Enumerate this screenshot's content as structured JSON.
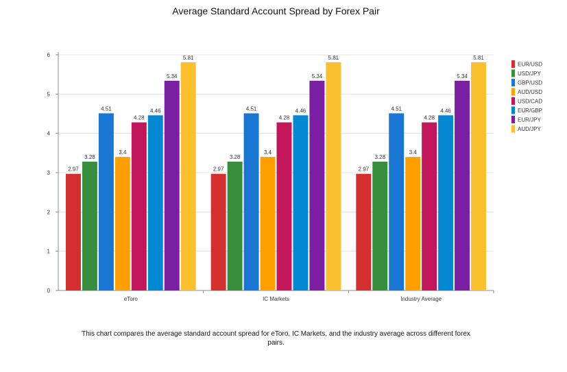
{
  "chart_data": {
    "type": "bar",
    "title": "Average Standard Account Spread by Forex Pair",
    "xlabel": "",
    "ylabel": "",
    "ylim": [
      0,
      6
    ],
    "yticks": [
      0,
      1,
      2,
      3,
      4,
      5,
      6
    ],
    "grid": true,
    "legend_position": "right",
    "categories": [
      "eToro",
      "IC Markets",
      "Industry Average"
    ],
    "series": [
      {
        "name": "EUR/USD",
        "color": "#d32f2f",
        "values": [
          2.97,
          2.97,
          2.97
        ]
      },
      {
        "name": "USD/JPY",
        "color": "#388e3c",
        "values": [
          3.28,
          3.28,
          3.28
        ]
      },
      {
        "name": "GBP/USD",
        "color": "#1976d2",
        "values": [
          4.51,
          4.51,
          4.51
        ]
      },
      {
        "name": "AUD/USD",
        "color": "#ffa000",
        "values": [
          3.4,
          3.4,
          3.4
        ]
      },
      {
        "name": "USD/CAD",
        "color": "#c2185b",
        "values": [
          4.28,
          4.28,
          4.28
        ]
      },
      {
        "name": "EUR/GBP",
        "color": "#0288d1",
        "values": [
          4.46,
          4.46,
          4.46
        ]
      },
      {
        "name": "EUR/JPY",
        "color": "#7b1fa2",
        "values": [
          5.34,
          5.34,
          5.34
        ]
      },
      {
        "name": "AUD/JPY",
        "color": "#fbc02d",
        "values": [
          5.81,
          5.81,
          5.81
        ]
      }
    ]
  },
  "caption": "This chart compares the average standard account spread for eToro, IC Markets, and the industry average across different forex pairs."
}
